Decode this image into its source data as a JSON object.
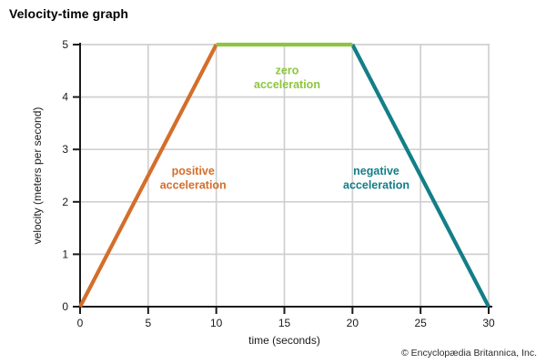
{
  "title": "Velocity-time graph",
  "credit": "© Encyclopædia Britannica, Inc.",
  "colors": {
    "positive": "#d46e2b",
    "zero": "#8cc63f",
    "negative": "#137e88",
    "grid": "#d0d0d0",
    "axis": "#1a1a1a",
    "tick_text": "#1a1a1a"
  },
  "chart_data": {
    "type": "line",
    "title": "Velocity-time graph",
    "xlabel": "time (seconds)",
    "ylabel": "velocity (meters per second)",
    "xlim": [
      0,
      30
    ],
    "ylim": [
      0,
      5
    ],
    "xticks": [
      0,
      5,
      10,
      15,
      20,
      25,
      30
    ],
    "yticks": [
      0,
      1,
      2,
      3,
      4,
      5
    ],
    "grid": true,
    "legend_position": "none",
    "series": [
      {
        "name": "positive acceleration",
        "color": "#d46e2b",
        "x": [
          0,
          10
        ],
        "y": [
          0,
          5
        ],
        "label": {
          "lines": [
            "positive",
            "acceleration"
          ],
          "at_x": 8.3,
          "at_y": 2.45
        }
      },
      {
        "name": "negative acceleration",
        "color": "#137e88",
        "x": [
          20,
          30
        ],
        "y": [
          5,
          0
        ],
        "label": {
          "lines": [
            "negative",
            "acceleration"
          ],
          "at_x": 21.75,
          "at_y": 2.45
        }
      },
      {
        "name": "zero acceleration",
        "color": "#8cc63f",
        "x": [
          10,
          20
        ],
        "y": [
          5,
          5
        ],
        "label": {
          "lines": [
            "zero",
            "acceleration"
          ],
          "at_x": 15.2,
          "at_y": 4.37
        }
      }
    ]
  }
}
